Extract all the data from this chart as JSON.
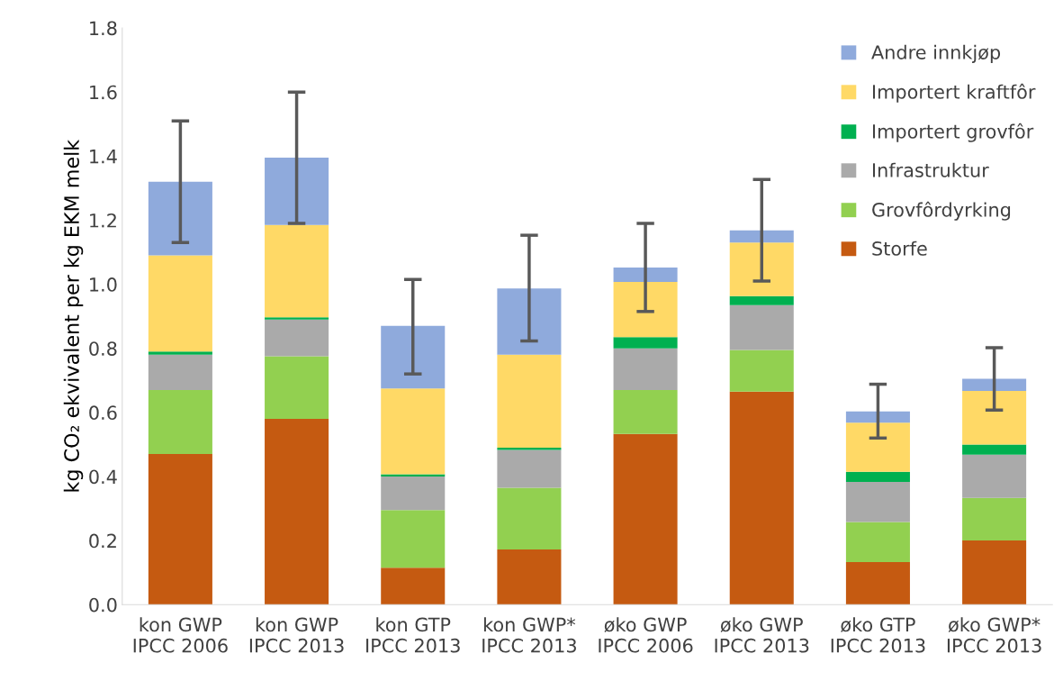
{
  "chart_data": {
    "type": "bar",
    "stacked": true,
    "ylabel": "kg CO₂ ekvivalent per kg EKM melk",
    "categories": [
      "kon GWP\nIPCC 2006",
      "kon GWP\nIPCC 2013",
      "kon GTP\nIPCC 2013",
      "kon GWP*\nIPCC 2013",
      "øko GWP\nIPCC 2006",
      "øko GWP\nIPCC 2013",
      "øko GTP\nIPCC 2013",
      "øko GWP*\nIPCC 2013"
    ],
    "series": [
      {
        "name": "Storfe",
        "color": "#c55a11",
        "values": [
          0.47,
          0.58,
          0.115,
          0.172,
          0.533,
          0.665,
          0.133,
          0.2
        ]
      },
      {
        "name": "Grovfôrdyrking",
        "color": "#92d050",
        "values": [
          0.2,
          0.195,
          0.18,
          0.193,
          0.137,
          0.13,
          0.125,
          0.133
        ]
      },
      {
        "name": "Infrastruktur",
        "color": "#aaaaaa",
        "values": [
          0.11,
          0.115,
          0.105,
          0.118,
          0.13,
          0.14,
          0.125,
          0.135
        ]
      },
      {
        "name": "Importert grovfôr",
        "color": "#00b050",
        "values": [
          0.01,
          0.007,
          0.007,
          0.007,
          0.035,
          0.028,
          0.032,
          0.032
        ]
      },
      {
        "name": "Importert kraftfôr",
        "color": "#ffd966",
        "values": [
          0.3,
          0.288,
          0.268,
          0.29,
          0.172,
          0.167,
          0.153,
          0.167
        ]
      },
      {
        "name": "Andre innkjøp",
        "color": "#8faadc",
        "values": [
          0.23,
          0.21,
          0.195,
          0.207,
          0.045,
          0.038,
          0.035,
          0.038
        ],
        "errors": [
          [
            1.13,
            1.51
          ],
          [
            1.19,
            1.6
          ],
          [
            0.72,
            1.015
          ],
          [
            0.823,
            1.153
          ],
          [
            0.915,
            1.19
          ],
          [
            1.01,
            1.327
          ],
          [
            0.52,
            0.688
          ],
          [
            0.607,
            0.802
          ]
        ]
      }
    ],
    "ylim": [
      0,
      1.8
    ],
    "yticks": [
      {
        "value": 0,
        "label": "0.0"
      },
      {
        "value": 0.2,
        "label": "0.2"
      },
      {
        "value": 0.4,
        "label": "0.4"
      },
      {
        "value": 0.6,
        "label": "0.6"
      },
      {
        "value": 0.8,
        "label": "0.8"
      },
      {
        "value": 1.0,
        "label": "1.0"
      },
      {
        "value": 1.2,
        "label": "1.2"
      },
      {
        "value": 1.4,
        "label": "1.4"
      },
      {
        "value": 1.6,
        "label": "1.6"
      },
      {
        "value": 1.8,
        "label": "1.8"
      }
    ],
    "legend": "top right",
    "grid": false
  }
}
